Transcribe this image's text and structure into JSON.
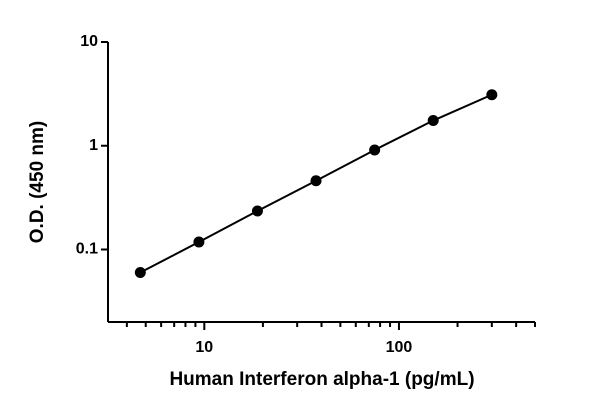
{
  "chart_data": {
    "type": "scatter",
    "x_label": "Human Interferon alpha-1 (pg/mL)",
    "y_label": "O.D. (450 nm)",
    "series": [
      {
        "color": "#000000",
        "x": [
          4.69,
          9.38,
          18.75,
          37.5,
          75,
          150,
          300
        ],
        "values": [
          0.06,
          0.118,
          0.235,
          0.46,
          0.91,
          1.75,
          3.1
        ]
      }
    ],
    "xscale": "log",
    "yscale": "log",
    "xlim": [
      3.2,
      500
    ],
    "ylim": [
      0.02,
      10
    ],
    "xticks": [
      10,
      100
    ],
    "x_minor_ticks": [
      4,
      5,
      6,
      7,
      8,
      9,
      20,
      30,
      40,
      50,
      60,
      70,
      80,
      90,
      200,
      300,
      400,
      500
    ],
    "yticks": [
      0.1,
      1,
      10
    ],
    "grid": false,
    "fit_line": true
  }
}
